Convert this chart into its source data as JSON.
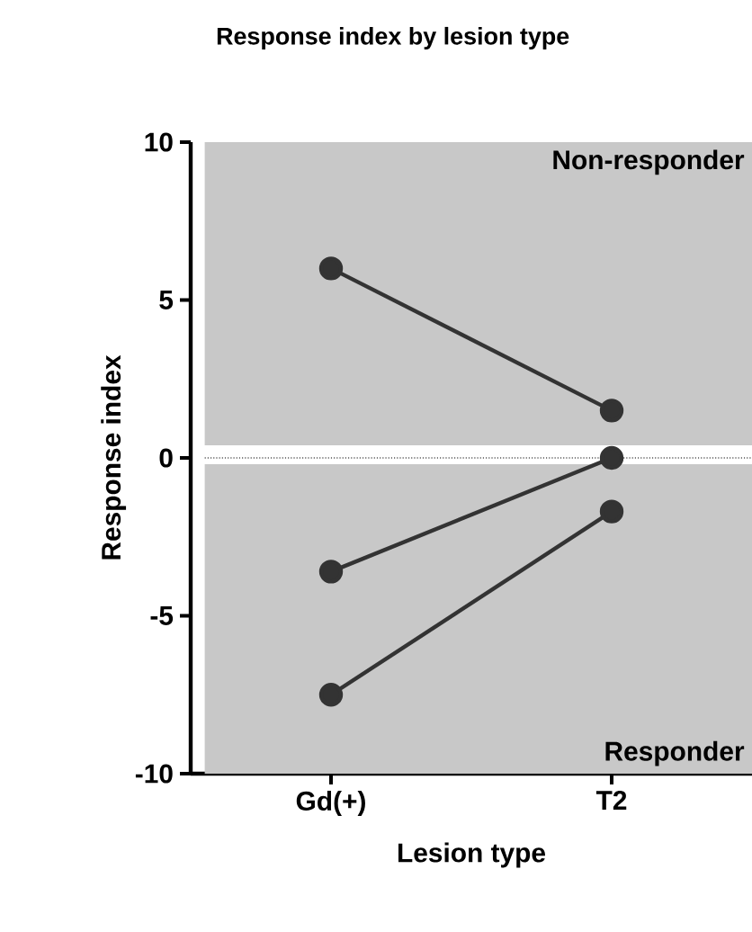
{
  "chart_data": {
    "type": "line",
    "title": "Response index by lesion type",
    "xlabel": "Lesion type",
    "ylabel": "Response index",
    "categories": [
      "Gd(+)",
      "T2"
    ],
    "series": [
      {
        "color": "#333333",
        "values": [
          6.0,
          1.5
        ]
      },
      {
        "color": "#333333",
        "values": [
          -3.6,
          0
        ]
      },
      {
        "color": "#333333",
        "values": [
          -7.5,
          -1.7
        ]
      }
    ],
    "ylim": [
      -10,
      10
    ],
    "yticks": [
      -10,
      -5,
      0,
      5,
      10
    ],
    "marker": "circle",
    "line_style": "solid",
    "bands": [
      {
        "axis": "y",
        "from": 0.4,
        "to": 10,
        "label": "Non-responder",
        "color": "#c8c8c8"
      },
      {
        "axis": "y",
        "from": -10,
        "to": -0.2,
        "label": "Responder",
        "color": "#c8c8c8"
      }
    ],
    "ref_lines": [
      {
        "axis": "y",
        "value": 0,
        "line_style": "dotted",
        "color": "#000000"
      }
    ]
  }
}
